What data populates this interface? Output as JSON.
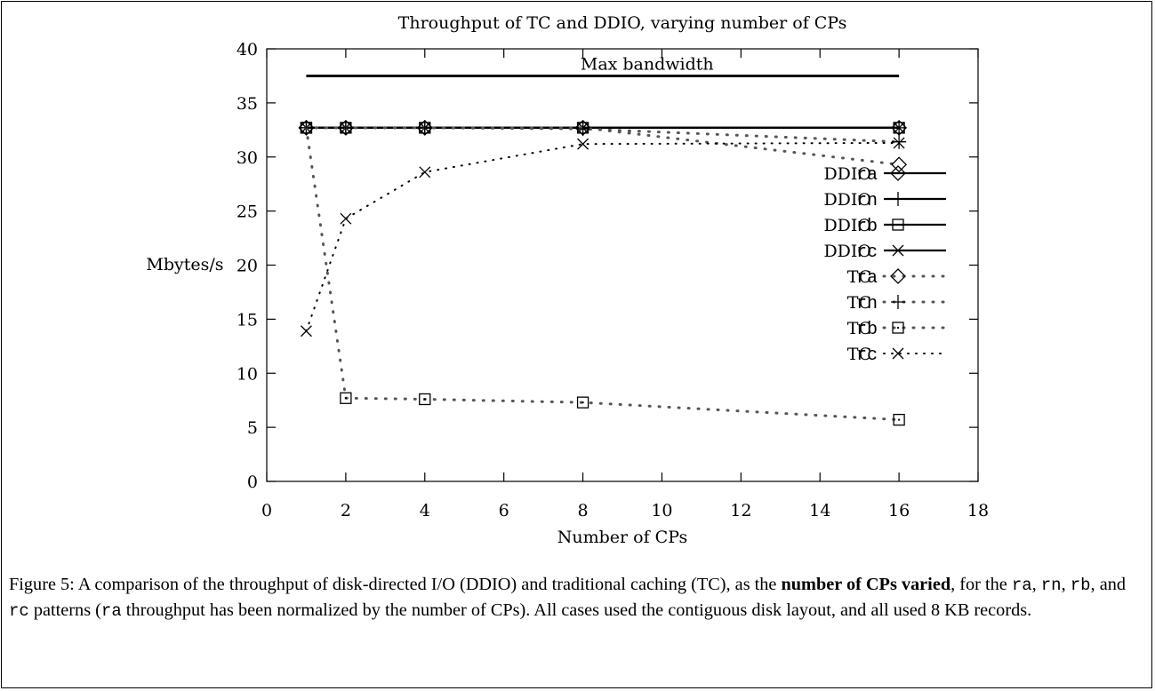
{
  "chart_data": {
    "type": "line",
    "title": "Throughput of TC and DDIO, varying number of CPs",
    "xlabel": "Number of CPs",
    "ylabel": "Mbytes/s",
    "xlim": [
      0,
      18
    ],
    "ylim": [
      0,
      40
    ],
    "xticks": [
      0,
      2,
      4,
      6,
      8,
      10,
      12,
      14,
      16,
      18
    ],
    "yticks": [
      0,
      5,
      10,
      15,
      20,
      25,
      30,
      35,
      40
    ],
    "grid": false,
    "legend_placement": "right",
    "x": [
      1,
      2,
      4,
      8,
      16
    ],
    "reference_line": {
      "label": "Max bandwidth",
      "y": 37.5,
      "x_range": [
        1,
        16
      ]
    },
    "series": [
      {
        "name_system": "DDIO",
        "name_pattern": "ra",
        "marker": "diamond",
        "line": "solid",
        "values": [
          32.7,
          32.7,
          32.7,
          32.7,
          32.7
        ]
      },
      {
        "name_system": "DDIO",
        "name_pattern": "rn",
        "marker": "plus",
        "line": "solid",
        "values": [
          32.7,
          32.7,
          32.7,
          32.7,
          32.7
        ]
      },
      {
        "name_system": "DDIO",
        "name_pattern": "rb",
        "marker": "square",
        "line": "solid",
        "values": [
          32.7,
          32.7,
          32.7,
          32.7,
          32.7
        ]
      },
      {
        "name_system": "DDIO",
        "name_pattern": "rc",
        "marker": "cross",
        "line": "solid",
        "values": [
          32.7,
          32.7,
          32.7,
          32.7,
          32.7
        ]
      },
      {
        "name_system": "TC",
        "name_pattern": "ra",
        "marker": "diamond",
        "line": "dotted",
        "values": [
          32.7,
          32.7,
          32.7,
          32.7,
          29.3
        ]
      },
      {
        "name_system": "TC",
        "name_pattern": "rn",
        "marker": "plus",
        "line": "dotted",
        "values": [
          32.7,
          32.7,
          32.7,
          32.6,
          31.4
        ]
      },
      {
        "name_system": "TC",
        "name_pattern": "rb",
        "marker": "square",
        "line": "dotted",
        "values": [
          32.7,
          7.7,
          7.6,
          7.3,
          5.7
        ]
      },
      {
        "name_system": "TC",
        "name_pattern": "rc",
        "marker": "cross",
        "line": "dotted",
        "values": [
          13.9,
          24.3,
          28.6,
          31.2,
          31.3
        ]
      }
    ]
  },
  "caption": {
    "p1": "Figure 5:  A comparison of the throughput of disk-directed I/O (DDIO) and traditional caching (TC), as the ",
    "bold": "number of CPs varied",
    "p2": ", for the ",
    "c1": "ra",
    "s1": ", ",
    "c2": "rn",
    "s2": ", ",
    "c3": "rb",
    "s3": ", and ",
    "c4": "rc",
    "s4": " patterns (",
    "c5": "ra",
    "p3": " throughput has been normalized by the number of CPs).  All cases used the contiguous disk layout, and all used 8 KB records."
  }
}
